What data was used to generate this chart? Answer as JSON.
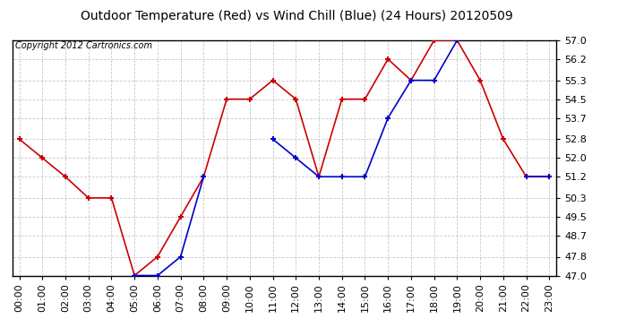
{
  "title": "Outdoor Temperature (Red) vs Wind Chill (Blue) (24 Hours) 20120509",
  "copyright": "Copyright 2012 Cartronics.com",
  "hours": [
    0,
    1,
    2,
    3,
    4,
    5,
    6,
    7,
    8,
    9,
    10,
    11,
    12,
    13,
    14,
    15,
    16,
    17,
    18,
    19,
    20,
    21,
    22,
    23
  ],
  "temp_red": [
    52.8,
    52.0,
    51.2,
    50.3,
    50.3,
    47.0,
    47.8,
    49.5,
    51.2,
    54.5,
    54.5,
    55.3,
    54.5,
    51.2,
    54.5,
    54.5,
    56.2,
    55.3,
    57.0,
    57.0,
    55.3,
    52.8,
    51.2,
    51.2
  ],
  "wind_blue": [
    null,
    null,
    null,
    null,
    null,
    47.0,
    47.0,
    47.8,
    51.2,
    null,
    null,
    52.8,
    52.0,
    51.2,
    51.2,
    51.2,
    53.7,
    55.3,
    55.3,
    57.0,
    null,
    null,
    51.2,
    51.2
  ],
  "ylim": [
    47.0,
    57.0
  ],
  "yticks": [
    47.0,
    47.8,
    48.7,
    49.5,
    50.3,
    51.2,
    52.0,
    52.8,
    53.7,
    54.5,
    55.3,
    56.2,
    57.0
  ],
  "bg_color": "#ffffff",
  "grid_color": "#c8c8c8",
  "red_color": "#cc0000",
  "blue_color": "#0000cc",
  "title_color": "#000000",
  "copyright_color": "#000000",
  "title_fontsize": 10,
  "copyright_fontsize": 7,
  "tick_fontsize": 8
}
